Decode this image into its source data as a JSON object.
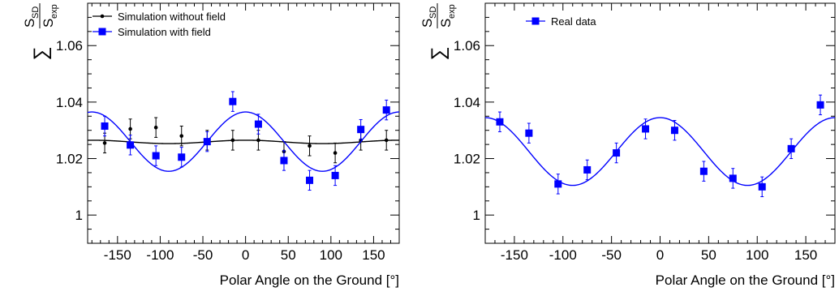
{
  "chart_data": [
    {
      "type": "scatter",
      "xlabel": "Polar Angle on the Ground [°]",
      "ylabel": "S_SD / S_exp",
      "ylabel_parts": {
        "sum": "∑",
        "num_main": "S",
        "num_sub": "SD",
        "den_main": "S",
        "den_sub": "exp"
      },
      "xlim": [
        -185,
        180
      ],
      "ylim": [
        0.99,
        1.075
      ],
      "x_ticks": [
        -150,
        -100,
        -50,
        0,
        50,
        100,
        150
      ],
      "x_tick_labels": [
        "-150",
        "-100",
        "-50",
        "0",
        "50",
        "100",
        "150"
      ],
      "y_ticks": [
        1.0,
        1.02,
        1.04,
        1.06
      ],
      "y_tick_labels": [
        "1",
        "1.02",
        "1.04",
        "1.06"
      ],
      "grid": false,
      "legend_position": "top-left",
      "series": [
        {
          "name": "Simulation without field",
          "color": "#000000",
          "marker": "circle",
          "x": [
            -165,
            -135,
            -105,
            -75,
            -45,
            -15,
            15,
            45,
            75,
            105,
            135,
            165
          ],
          "y": [
            1.0255,
            1.0305,
            1.031,
            1.028,
            1.0265,
            1.0265,
            1.0265,
            1.0225,
            1.0245,
            1.022,
            1.0265,
            1.0265
          ],
          "yerr": [
            0.0035,
            0.0035,
            0.0035,
            0.0035,
            0.0035,
            0.0035,
            0.0035,
            0.0035,
            0.0035,
            0.0035,
            0.0035,
            0.0035
          ],
          "fit": {
            "amplitude": 0.0006,
            "offset": 1.0259
          }
        },
        {
          "name": "Simulation with field",
          "color": "#0000ff",
          "marker": "square",
          "x": [
            -165,
            -135,
            -105,
            -75,
            -45,
            -15,
            15,
            45,
            75,
            105,
            135,
            165
          ],
          "y": [
            1.0315,
            1.0248,
            1.021,
            1.0205,
            1.026,
            1.0402,
            1.0322,
            1.0193,
            1.0123,
            1.014,
            1.0303,
            1.0372
          ],
          "yerr": [
            0.0035,
            0.0035,
            0.0035,
            0.0035,
            0.0035,
            0.0035,
            0.0035,
            0.0035,
            0.0035,
            0.0035,
            0.0035,
            0.0035
          ],
          "fit": {
            "amplitude": 0.0105,
            "offset": 1.026
          }
        }
      ]
    },
    {
      "type": "scatter",
      "xlabel": "Polar Angle on the Ground [°]",
      "ylabel": "S_SD / S_exp",
      "ylabel_parts": {
        "sum": "∑",
        "num_main": "S",
        "num_sub": "SD",
        "den_main": "S",
        "den_sub": "exp"
      },
      "xlim": [
        -180,
        180
      ],
      "ylim": [
        0.99,
        1.075
      ],
      "x_ticks": [
        -150,
        -100,
        -50,
        0,
        50,
        100,
        150
      ],
      "x_tick_labels": [
        "-150",
        "-100",
        "-50",
        "0",
        "50",
        "100",
        "150"
      ],
      "y_ticks": [
        1.0,
        1.02,
        1.04,
        1.06
      ],
      "y_tick_labels": [
        "1",
        "1.02",
        "1.04",
        "1.06"
      ],
      "grid": false,
      "legend_position": "top-left",
      "series": [
        {
          "name": "Real data",
          "color": "#0000ff",
          "marker": "square",
          "x": [
            -165,
            -135,
            -105,
            -75,
            -45,
            -15,
            15,
            45,
            75,
            105,
            135,
            165
          ],
          "y": [
            1.033,
            1.029,
            1.011,
            1.016,
            1.022,
            1.0305,
            1.03,
            1.0155,
            1.013,
            1.01,
            1.0235,
            1.039
          ],
          "yerr": [
            0.0035,
            0.0035,
            0.0035,
            0.0035,
            0.0035,
            0.0035,
            0.0035,
            0.0035,
            0.0035,
            0.0035,
            0.0035,
            0.0035
          ],
          "fit": {
            "amplitude": 0.012,
            "offset": 1.0225
          }
        }
      ]
    }
  ]
}
